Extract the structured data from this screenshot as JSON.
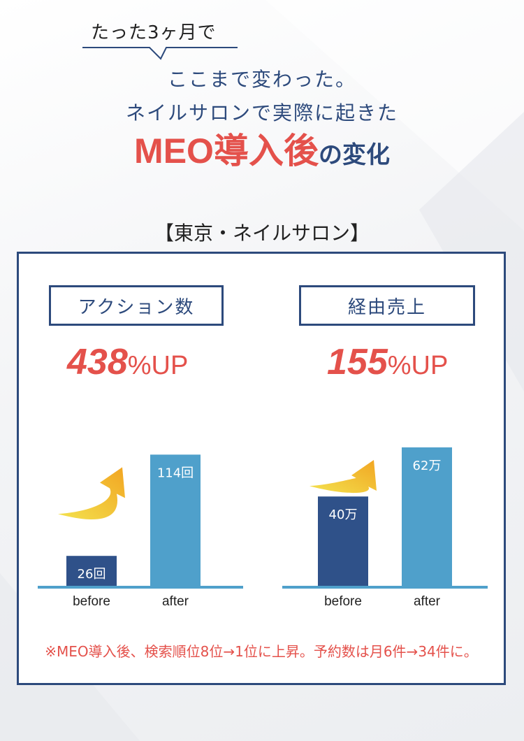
{
  "header": {
    "lead": "たった3ヶ月で",
    "line1": "ここまで変わった。",
    "line2": "ネイルサロンで実際に起きた",
    "headline_emphasis": "MEO導入後",
    "headline_rest": "の変化"
  },
  "location_label": "【東京・ネイルサロン】",
  "colors": {
    "navy": "#2d4a7c",
    "red": "#e4514b",
    "before_bar": "#2f5189",
    "after_bar": "#4fa0cb",
    "baseline": "#4fa0cb",
    "arrow_from": "#f3e24e",
    "arrow_to": "#f2a522"
  },
  "chart_data": [
    {
      "type": "bar",
      "title": "アクション数",
      "highlight": {
        "value": "438",
        "suffix": "%UP"
      },
      "categories": [
        "before",
        "after"
      ],
      "values": [
        26,
        114
      ],
      "data_labels": [
        "26回",
        "114回"
      ],
      "unit": "回",
      "ylim": [
        0,
        130
      ],
      "grid": false,
      "legend": "none",
      "arrow_icon": "trend-up-arrow-icon"
    },
    {
      "type": "bar",
      "title": "経由売上",
      "highlight": {
        "value": "155",
        "suffix": "%UP"
      },
      "categories": [
        "before",
        "after"
      ],
      "values": [
        40,
        62
      ],
      "data_labels": [
        "40万",
        "62万"
      ],
      "unit": "万",
      "ylim": [
        0,
        67
      ],
      "grid": false,
      "legend": "none",
      "arrow_icon": "trend-up-arrow-icon"
    }
  ],
  "footnote": "※MEO導入後、検索順位8位→1位に上昇。予約数は月6件→34件に。"
}
